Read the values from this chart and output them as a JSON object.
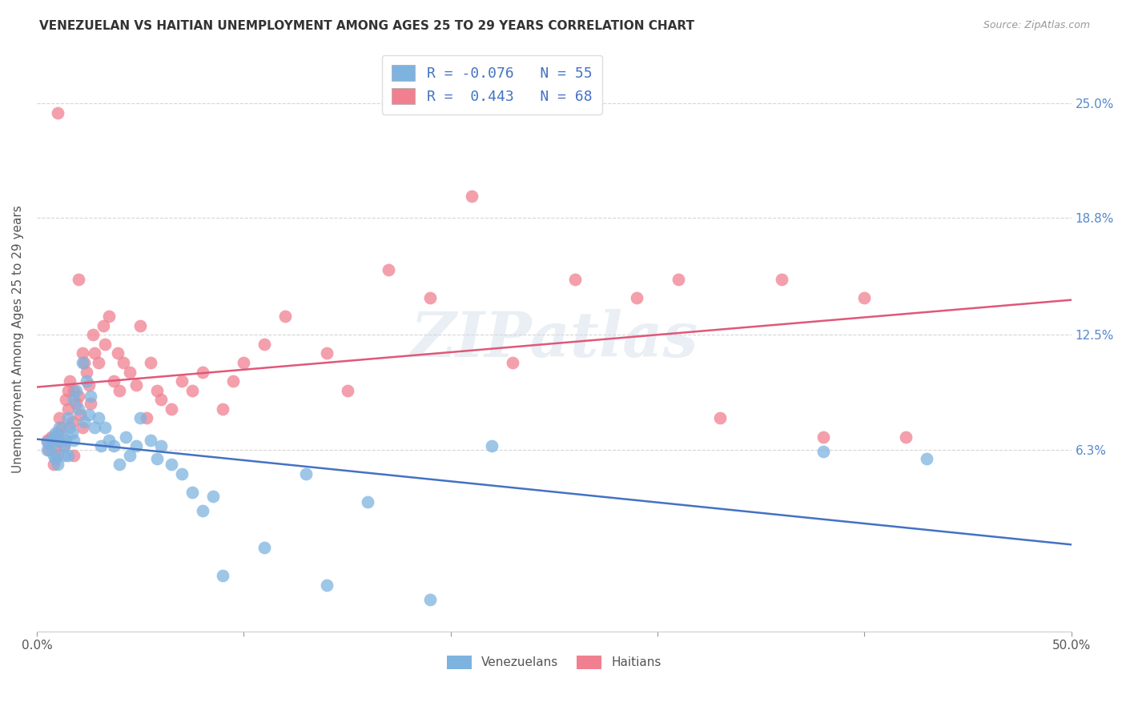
{
  "title": "VENEZUELAN VS HAITIAN UNEMPLOYMENT AMONG AGES 25 TO 29 YEARS CORRELATION CHART",
  "source": "Source: ZipAtlas.com",
  "ylabel": "Unemployment Among Ages 25 to 29 years",
  "xlim": [
    0.0,
    0.5
  ],
  "ylim": [
    -0.035,
    0.28
  ],
  "ytick_positions": [
    0.063,
    0.125,
    0.188,
    0.25
  ],
  "ytick_labels": [
    "6.3%",
    "12.5%",
    "18.8%",
    "25.0%"
  ],
  "legend_bottom": [
    "Venezuelans",
    "Haitians"
  ],
  "venezuelan_color": "#7eb3e0",
  "haitian_color": "#f08090",
  "venezuelan_line_color": "#4472c4",
  "haitian_line_color": "#e05878",
  "background_color": "#ffffff",
  "grid_color": "#cccccc",
  "watermark": "ZIPatlas",
  "venezuelan_x": [
    0.005,
    0.005,
    0.007,
    0.008,
    0.008,
    0.009,
    0.009,
    0.01,
    0.01,
    0.011,
    0.012,
    0.013,
    0.013,
    0.014,
    0.015,
    0.015,
    0.016,
    0.017,
    0.018,
    0.018,
    0.019,
    0.02,
    0.022,
    0.023,
    0.024,
    0.025,
    0.026,
    0.028,
    0.03,
    0.031,
    0.033,
    0.035,
    0.037,
    0.04,
    0.043,
    0.045,
    0.048,
    0.05,
    0.055,
    0.058,
    0.06,
    0.065,
    0.07,
    0.075,
    0.08,
    0.085,
    0.09,
    0.11,
    0.13,
    0.14,
    0.16,
    0.19,
    0.22,
    0.38,
    0.43
  ],
  "venezuelan_y": [
    0.067,
    0.063,
    0.065,
    0.07,
    0.06,
    0.072,
    0.058,
    0.068,
    0.055,
    0.075,
    0.07,
    0.065,
    0.06,
    0.068,
    0.08,
    0.06,
    0.075,
    0.072,
    0.09,
    0.068,
    0.095,
    0.085,
    0.11,
    0.078,
    0.1,
    0.082,
    0.092,
    0.075,
    0.08,
    0.065,
    0.075,
    0.068,
    0.065,
    0.055,
    0.07,
    0.06,
    0.065,
    0.08,
    0.068,
    0.058,
    0.065,
    0.055,
    0.05,
    0.04,
    0.03,
    0.038,
    -0.005,
    0.01,
    0.05,
    -0.01,
    0.035,
    -0.018,
    0.065,
    0.062,
    0.058
  ],
  "haitian_x": [
    0.005,
    0.006,
    0.007,
    0.008,
    0.009,
    0.01,
    0.01,
    0.011,
    0.012,
    0.013,
    0.014,
    0.015,
    0.016,
    0.017,
    0.018,
    0.019,
    0.02,
    0.021,
    0.022,
    0.023,
    0.024,
    0.025,
    0.026,
    0.027,
    0.028,
    0.03,
    0.032,
    0.033,
    0.035,
    0.037,
    0.039,
    0.04,
    0.042,
    0.045,
    0.048,
    0.05,
    0.053,
    0.055,
    0.058,
    0.06,
    0.065,
    0.07,
    0.075,
    0.08,
    0.09,
    0.095,
    0.1,
    0.11,
    0.12,
    0.14,
    0.15,
    0.17,
    0.19,
    0.21,
    0.23,
    0.26,
    0.29,
    0.31,
    0.33,
    0.36,
    0.38,
    0.4,
    0.42,
    0.01,
    0.015,
    0.018,
    0.02,
    0.022
  ],
  "haitian_y": [
    0.068,
    0.063,
    0.07,
    0.055,
    0.065,
    0.072,
    0.06,
    0.08,
    0.075,
    0.065,
    0.09,
    0.085,
    0.1,
    0.078,
    0.095,
    0.088,
    0.092,
    0.082,
    0.075,
    0.11,
    0.105,
    0.098,
    0.088,
    0.125,
    0.115,
    0.11,
    0.13,
    0.12,
    0.135,
    0.1,
    0.115,
    0.095,
    0.11,
    0.105,
    0.098,
    0.13,
    0.08,
    0.11,
    0.095,
    0.09,
    0.085,
    0.1,
    0.095,
    0.105,
    0.085,
    0.1,
    0.11,
    0.12,
    0.135,
    0.115,
    0.095,
    0.16,
    0.145,
    0.2,
    0.11,
    0.155,
    0.145,
    0.155,
    0.08,
    0.155,
    0.07,
    0.145,
    0.07,
    0.245,
    0.095,
    0.06,
    0.155,
    0.115
  ]
}
